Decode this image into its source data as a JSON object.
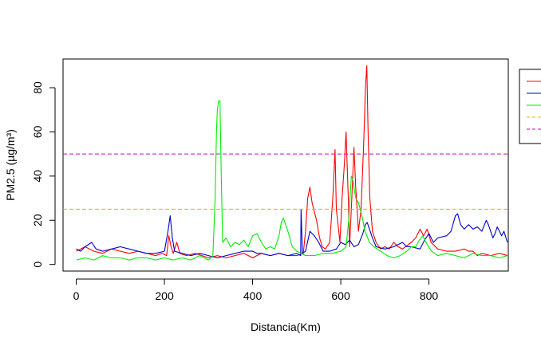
{
  "chart_data": {
    "type": "line",
    "xlabel": "Distancia(Km)",
    "ylabel": "PM2.5 (µg/m³)",
    "xlim": [
      -30,
      980
    ],
    "ylim": [
      -3,
      93
    ],
    "x_ticks": [
      0,
      200,
      400,
      600,
      800
    ],
    "y_ticks": [
      0,
      20,
      40,
      60,
      80
    ],
    "grid": false,
    "legend_position": "top-right",
    "series": [
      {
        "color": "#ff0000",
        "style": "solid",
        "points": [
          [
            0,
            6
          ],
          [
            20,
            8
          ],
          [
            40,
            6
          ],
          [
            60,
            5
          ],
          [
            80,
            7
          ],
          [
            100,
            6
          ],
          [
            120,
            5
          ],
          [
            140,
            6
          ],
          [
            160,
            5
          ],
          [
            180,
            4
          ],
          [
            195,
            5
          ],
          [
            205,
            4
          ],
          [
            210,
            13
          ],
          [
            215,
            8
          ],
          [
            220,
            5
          ],
          [
            228,
            10
          ],
          [
            235,
            5
          ],
          [
            250,
            4
          ],
          [
            270,
            5
          ],
          [
            285,
            4
          ],
          [
            300,
            3
          ],
          [
            320,
            4
          ],
          [
            340,
            3
          ],
          [
            360,
            4
          ],
          [
            380,
            5
          ],
          [
            400,
            3
          ],
          [
            420,
            5
          ],
          [
            440,
            4
          ],
          [
            460,
            5
          ],
          [
            480,
            4
          ],
          [
            500,
            4
          ],
          [
            515,
            5
          ],
          [
            520,
            15
          ],
          [
            525,
            30
          ],
          [
            530,
            35
          ],
          [
            535,
            28
          ],
          [
            545,
            20
          ],
          [
            552,
            12
          ],
          [
            558,
            8
          ],
          [
            565,
            7
          ],
          [
            575,
            10
          ],
          [
            582,
            30
          ],
          [
            587,
            52
          ],
          [
            590,
            25
          ],
          [
            594,
            18
          ],
          [
            598,
            10
          ],
          [
            603,
            30
          ],
          [
            608,
            45
          ],
          [
            612,
            60
          ],
          [
            614,
            48
          ],
          [
            617,
            30
          ],
          [
            620,
            8
          ],
          [
            625,
            30
          ],
          [
            630,
            53
          ],
          [
            634,
            35
          ],
          [
            640,
            15
          ],
          [
            646,
            25
          ],
          [
            652,
            55
          ],
          [
            656,
            80
          ],
          [
            659,
            90
          ],
          [
            662,
            60
          ],
          [
            666,
            30
          ],
          [
            672,
            15
          ],
          [
            680,
            10
          ],
          [
            690,
            7
          ],
          [
            700,
            8
          ],
          [
            710,
            7
          ],
          [
            720,
            10
          ],
          [
            730,
            8
          ],
          [
            740,
            7
          ],
          [
            760,
            10
          ],
          [
            770,
            12
          ],
          [
            780,
            16
          ],
          [
            788,
            13
          ],
          [
            796,
            16
          ],
          [
            805,
            10
          ],
          [
            820,
            7
          ],
          [
            840,
            6
          ],
          [
            860,
            6
          ],
          [
            880,
            7
          ],
          [
            890,
            6
          ],
          [
            900,
            6
          ],
          [
            910,
            4
          ],
          [
            920,
            5
          ],
          [
            940,
            4
          ],
          [
            960,
            5
          ],
          [
            978,
            4
          ]
        ]
      },
      {
        "color": "#0000cc",
        "style": "solid",
        "points": [
          [
            0,
            7
          ],
          [
            10,
            6
          ],
          [
            20,
            8
          ],
          [
            35,
            10
          ],
          [
            45,
            7
          ],
          [
            60,
            6
          ],
          [
            80,
            7
          ],
          [
            100,
            8
          ],
          [
            120,
            7
          ],
          [
            140,
            6
          ],
          [
            160,
            5
          ],
          [
            180,
            5
          ],
          [
            200,
            6
          ],
          [
            208,
            15
          ],
          [
            213,
            22
          ],
          [
            218,
            12
          ],
          [
            223,
            6
          ],
          [
            240,
            5
          ],
          [
            260,
            4
          ],
          [
            280,
            5
          ],
          [
            300,
            4
          ],
          [
            320,
            3
          ],
          [
            340,
            4
          ],
          [
            360,
            5
          ],
          [
            380,
            6
          ],
          [
            400,
            6
          ],
          [
            410,
            5
          ],
          [
            420,
            5
          ],
          [
            440,
            4
          ],
          [
            460,
            5
          ],
          [
            480,
            4
          ],
          [
            500,
            5
          ],
          [
            509,
            4
          ],
          [
            510,
            25
          ],
          [
            513,
            5
          ],
          [
            520,
            6
          ],
          [
            530,
            15
          ],
          [
            540,
            13
          ],
          [
            550,
            10
          ],
          [
            560,
            6
          ],
          [
            575,
            6
          ],
          [
            590,
            7
          ],
          [
            600,
            10
          ],
          [
            610,
            9
          ],
          [
            620,
            11
          ],
          [
            630,
            8
          ],
          [
            640,
            9
          ],
          [
            650,
            14
          ],
          [
            656,
            18
          ],
          [
            660,
            19
          ],
          [
            665,
            16
          ],
          [
            672,
            12
          ],
          [
            680,
            8
          ],
          [
            700,
            7
          ],
          [
            720,
            8
          ],
          [
            740,
            10
          ],
          [
            750,
            8
          ],
          [
            760,
            8
          ],
          [
            780,
            7
          ],
          [
            790,
            11
          ],
          [
            800,
            14
          ],
          [
            810,
            10
          ],
          [
            820,
            12
          ],
          [
            840,
            13
          ],
          [
            850,
            15
          ],
          [
            860,
            22
          ],
          [
            865,
            23
          ],
          [
            872,
            18
          ],
          [
            880,
            16
          ],
          [
            890,
            18
          ],
          [
            900,
            16
          ],
          [
            910,
            17
          ],
          [
            920,
            15
          ],
          [
            930,
            20
          ],
          [
            935,
            18
          ],
          [
            945,
            12
          ],
          [
            950,
            14
          ],
          [
            955,
            17
          ],
          [
            965,
            13
          ],
          [
            970,
            15
          ],
          [
            978,
            10
          ]
        ]
      },
      {
        "color": "#00ee00",
        "style": "solid",
        "points": [
          [
            0,
            2
          ],
          [
            20,
            3
          ],
          [
            40,
            2
          ],
          [
            60,
            4
          ],
          [
            80,
            3
          ],
          [
            100,
            3
          ],
          [
            120,
            2
          ],
          [
            140,
            3
          ],
          [
            160,
            3
          ],
          [
            180,
            2
          ],
          [
            200,
            3
          ],
          [
            220,
            2
          ],
          [
            240,
            3
          ],
          [
            260,
            2
          ],
          [
            280,
            4
          ],
          [
            300,
            2
          ],
          [
            310,
            4
          ],
          [
            315,
            30
          ],
          [
            318,
            60
          ],
          [
            320,
            70
          ],
          [
            323,
            74
          ],
          [
            326,
            74
          ],
          [
            329,
            40
          ],
          [
            332,
            10
          ],
          [
            340,
            12
          ],
          [
            350,
            8
          ],
          [
            360,
            10
          ],
          [
            370,
            9
          ],
          [
            380,
            11
          ],
          [
            390,
            8
          ],
          [
            400,
            13
          ],
          [
            410,
            14
          ],
          [
            420,
            10
          ],
          [
            430,
            7
          ],
          [
            440,
            8
          ],
          [
            450,
            7
          ],
          [
            460,
            13
          ],
          [
            465,
            19
          ],
          [
            470,
            21
          ],
          [
            475,
            18
          ],
          [
            480,
            15
          ],
          [
            490,
            8
          ],
          [
            500,
            6
          ],
          [
            510,
            5
          ],
          [
            520,
            4
          ],
          [
            540,
            4
          ],
          [
            560,
            5
          ],
          [
            580,
            5
          ],
          [
            600,
            6
          ],
          [
            612,
            8
          ],
          [
            618,
            20
          ],
          [
            624,
            40
          ],
          [
            628,
            38
          ],
          [
            634,
            30
          ],
          [
            640,
            28
          ],
          [
            648,
            22
          ],
          [
            655,
            15
          ],
          [
            665,
            10
          ],
          [
            675,
            8
          ],
          [
            690,
            6
          ],
          [
            705,
            4
          ],
          [
            720,
            3
          ],
          [
            735,
            4
          ],
          [
            750,
            6
          ],
          [
            760,
            8
          ],
          [
            770,
            8
          ],
          [
            778,
            11
          ],
          [
            786,
            13
          ],
          [
            796,
            9
          ],
          [
            806,
            6
          ],
          [
            820,
            4
          ],
          [
            840,
            5
          ],
          [
            860,
            4
          ],
          [
            880,
            3
          ],
          [
            900,
            5
          ],
          [
            920,
            4
          ],
          [
            940,
            4
          ],
          [
            960,
            3
          ],
          [
            978,
            4
          ]
        ]
      },
      {
        "color": "#ffa500",
        "style": "dashed",
        "y_constant": 25
      },
      {
        "color": "#cc00cc",
        "style": "dashed",
        "y_constant": 50
      }
    ]
  }
}
